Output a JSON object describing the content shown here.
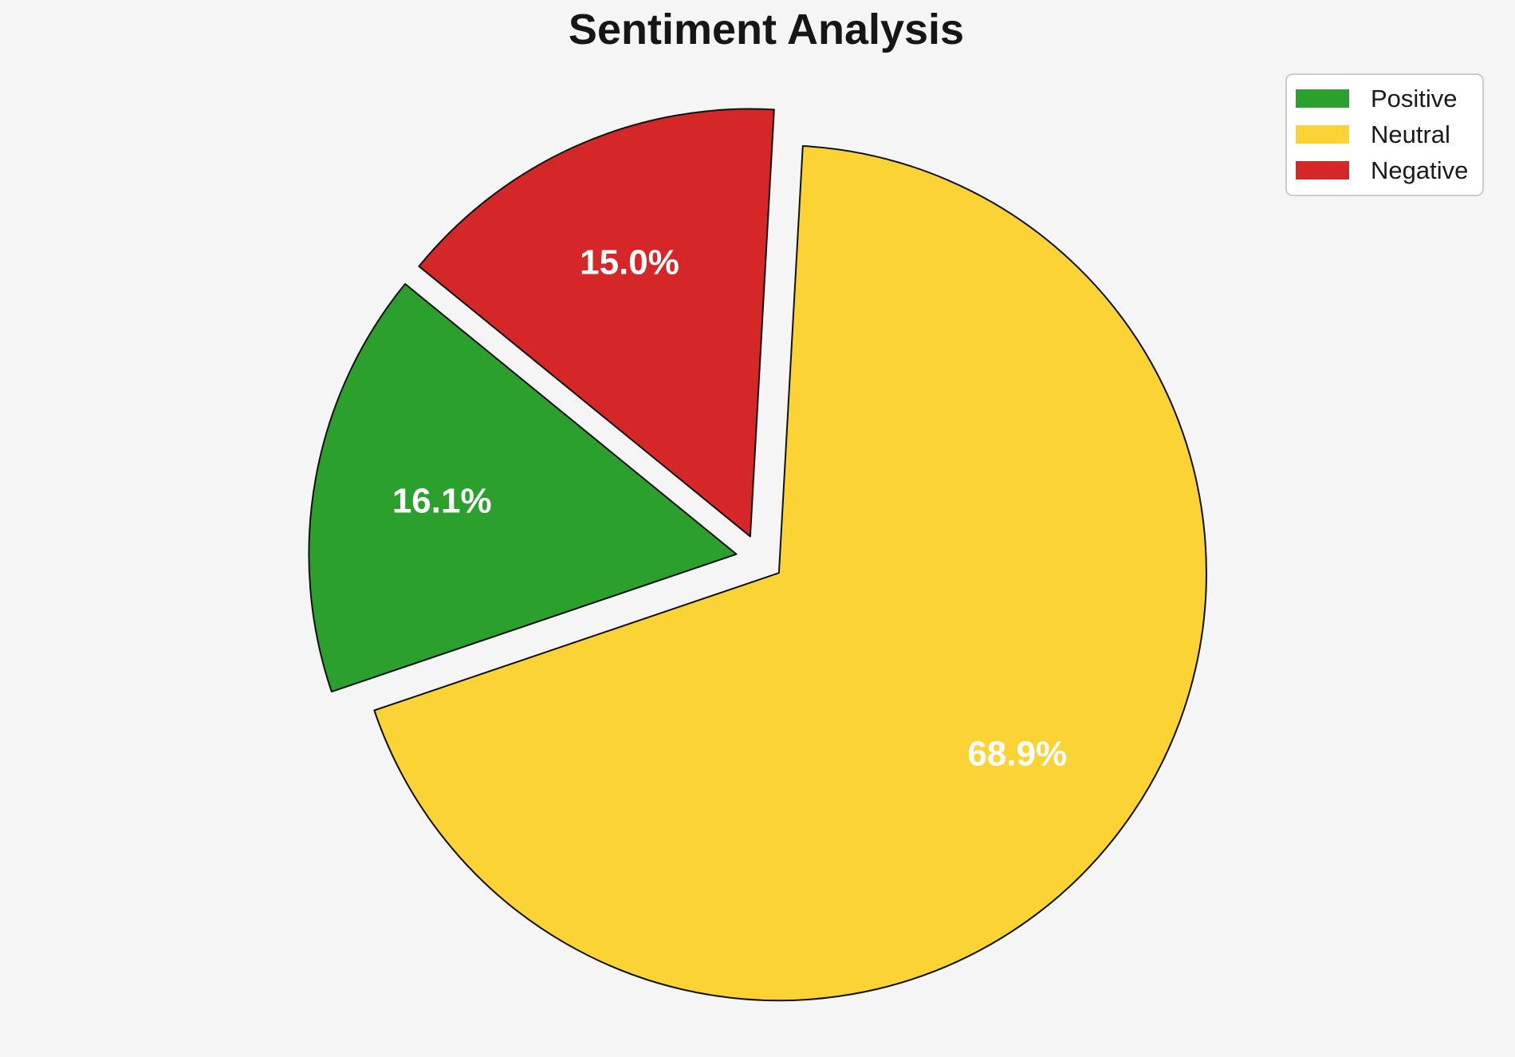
{
  "title": "Sentiment Analysis",
  "background_color": "#f5f5f6",
  "chart_data": {
    "type": "pie",
    "title": "Sentiment Analysis",
    "labels": [
      "Positive",
      "Neutral",
      "Negative"
    ],
    "values": [
      16.1,
      68.9,
      15.0
    ],
    "percent_labels": [
      "16.1%",
      "68.9%",
      "15.0%"
    ],
    "colors": [
      "#2CA02C",
      "#FBD335",
      "#D62728"
    ],
    "edge_color": "#111111",
    "pct_label_color": "#FFFFFF",
    "start_angle_deg": 140.8,
    "counterclockwise": true,
    "explode_fraction": 0.056,
    "pct_distance": 0.7,
    "legend_position": "upper right",
    "legend_entries": [
      "Positive",
      "Neutral",
      "Negative"
    ]
  }
}
